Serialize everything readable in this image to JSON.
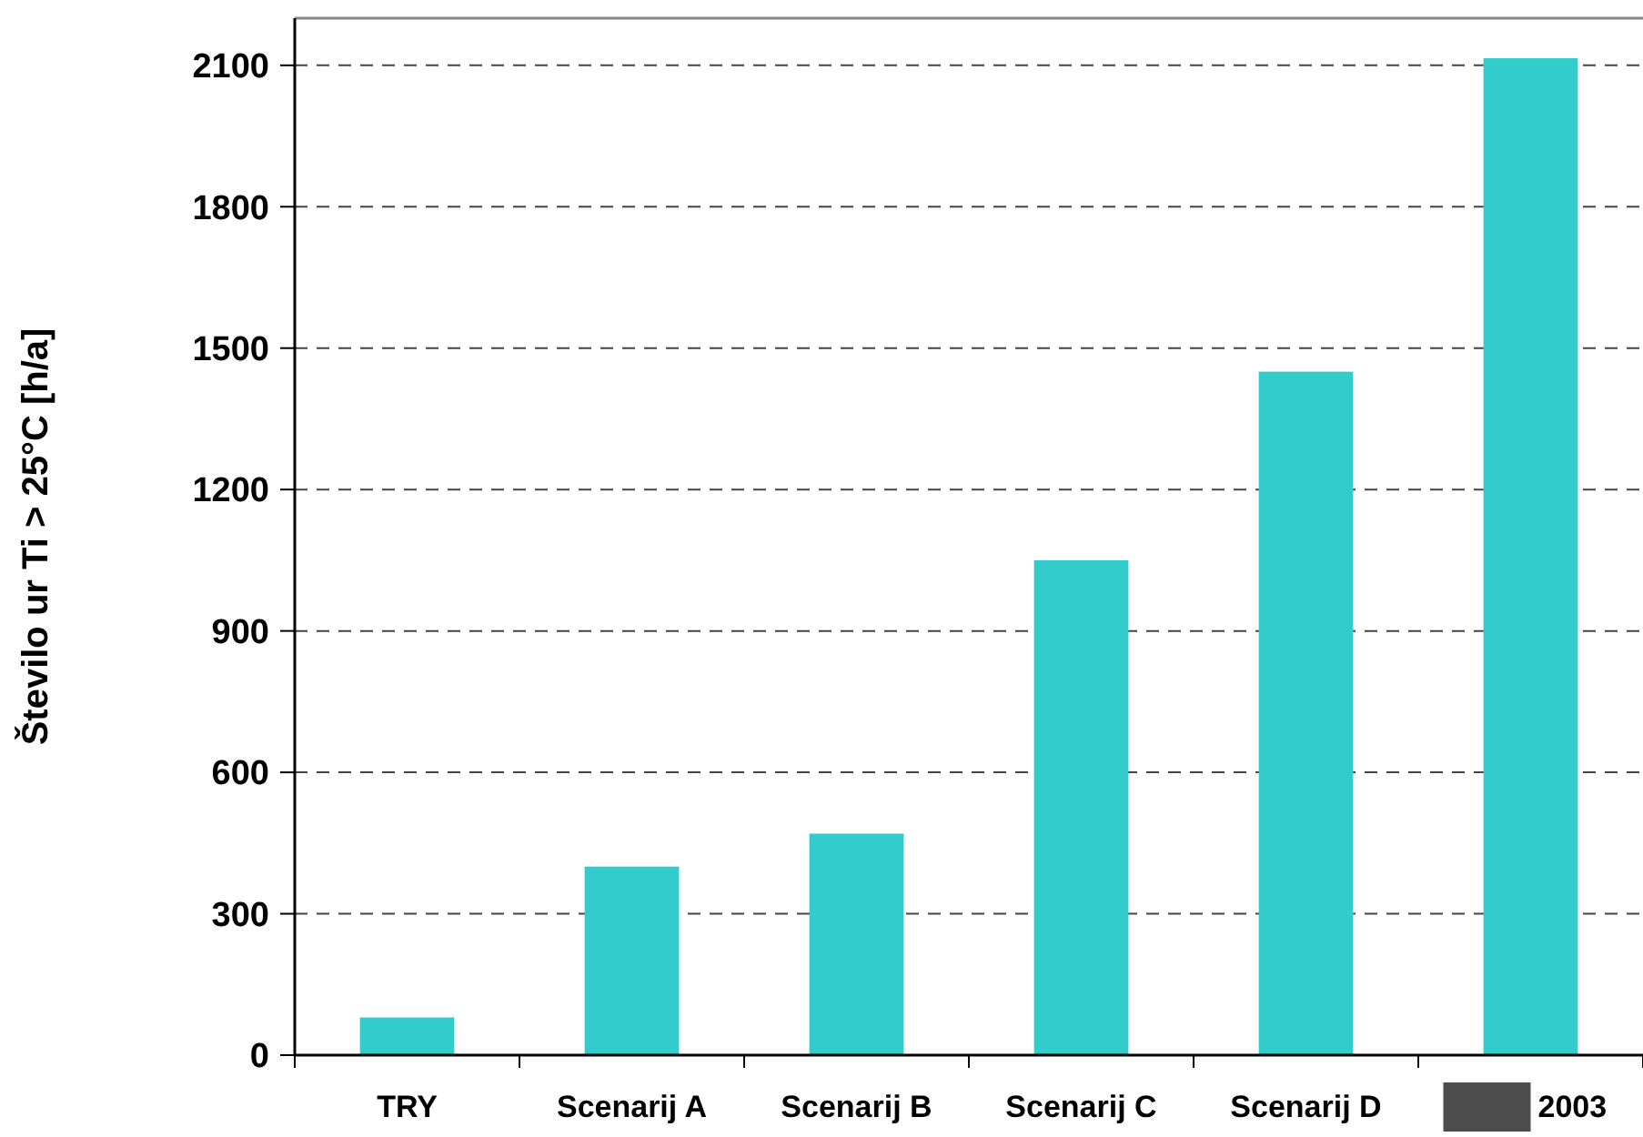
{
  "chart_data": {
    "type": "bar",
    "ylabel": "Število ur Ti > 25°C [h/a]",
    "categories": [
      "TRY",
      "Scenarij A",
      "Scenarij B",
      "Scenarij C",
      "Scenarij D",
      "2003"
    ],
    "values": [
      80,
      400,
      470,
      1050,
      1450,
      2115
    ],
    "color": "#33cccc",
    "ylim": [
      0,
      2200
    ],
    "yticks": [
      0,
      300,
      600,
      900,
      1200,
      1500,
      1800,
      2100
    ],
    "grid": "y"
  }
}
